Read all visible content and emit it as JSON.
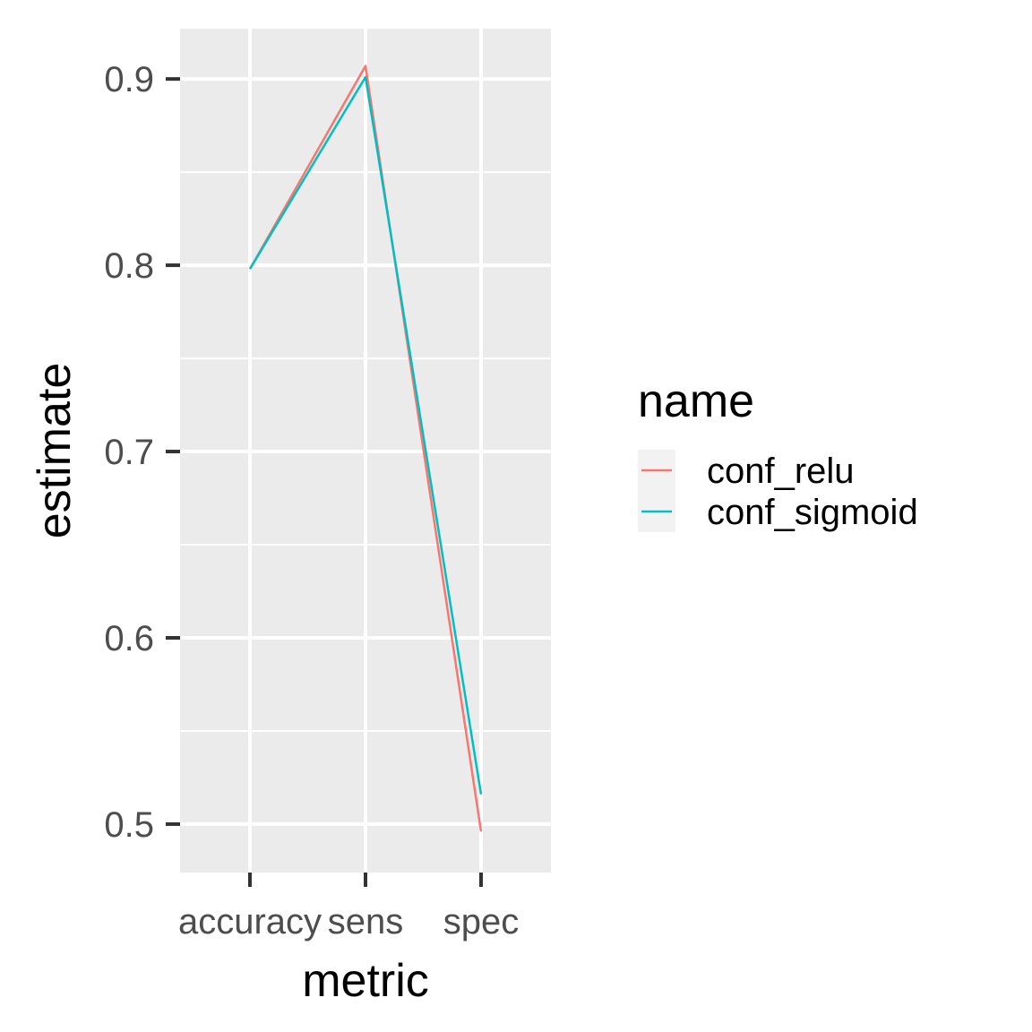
{
  "chart_data": {
    "type": "line",
    "title": "",
    "xlabel": "metric",
    "ylabel": "estimate",
    "categories": [
      "accuracy",
      "sens",
      "spec"
    ],
    "ylim": [
      0.474,
      0.927
    ],
    "y_ticks": [
      0.5,
      0.6,
      0.7,
      0.8,
      0.9
    ],
    "y_tick_labels": [
      "0.5",
      "0.6",
      "0.7",
      "0.8",
      "0.9"
    ],
    "grid": true,
    "legend": {
      "title": "name",
      "placement": "right"
    },
    "series": [
      {
        "name": "conf_relu",
        "color": "#F8766D",
        "values": [
          0.798,
          0.907,
          0.496
        ]
      },
      {
        "name": "conf_sigmoid",
        "color": "#00BFC4",
        "values": [
          0.798,
          0.901,
          0.516
        ]
      }
    ]
  },
  "colors": {
    "panel_background": "#EBEBEB",
    "grid_line": "#FFFFFF",
    "tick_mark": "#333333",
    "tick_text": "#4D4D4D"
  }
}
